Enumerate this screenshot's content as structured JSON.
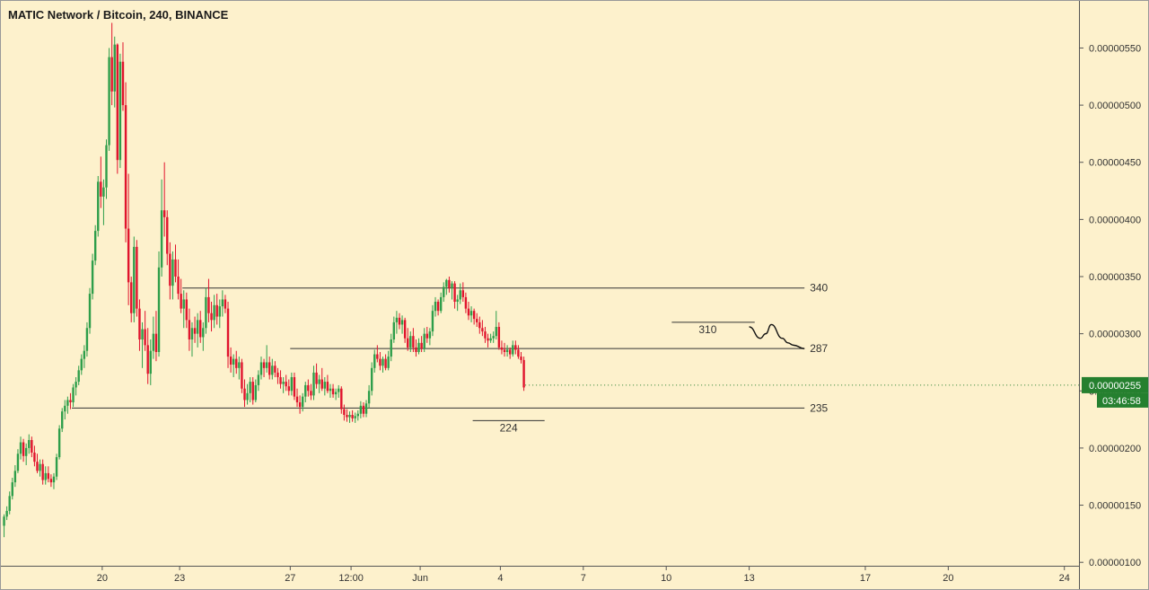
{
  "chart_data": {
    "type": "candlestick",
    "title": "MATIC Network / Bitcoin, 240, BINANCE",
    "y_ticks": [
      1e-06,
      1.5e-06,
      2e-06,
      2.5e-06,
      3e-06,
      3.5e-06,
      4e-06,
      4.5e-06,
      5e-06,
      5.5e-06
    ],
    "y_tick_labels": [
      "0.00000100",
      "0.00000150",
      "0.00000200",
      "0.00000250",
      "0.00000300",
      "0.00000350",
      "0.00000400",
      "0.00000450",
      "0.00000500",
      "0.00000550"
    ],
    "ylim": [
      9.7e-07,
      5.92e-06
    ],
    "x_labels": [
      "20",
      "23",
      "27",
      "12:00",
      "Jun",
      "4",
      "7",
      "10",
      "13",
      "17",
      "20",
      "24"
    ],
    "x_label_index": [
      36,
      64,
      104,
      126,
      151,
      180,
      210,
      240,
      270,
      312,
      342,
      384
    ],
    "n_slots": 384,
    "levels": [
      {
        "label": "340",
        "value": 3.4e-06,
        "from": 65,
        "to": 290
      },
      {
        "label": "287",
        "value": 2.87e-06,
        "from": 104,
        "to": 290
      },
      {
        "label": "235",
        "value": 2.35e-06,
        "from": 25,
        "to": 290
      },
      {
        "label": "224",
        "value": 2.24e-06,
        "from": 170,
        "to": 196
      },
      {
        "label": "310",
        "value": 3.1e-06,
        "from": 242,
        "to": 272
      }
    ],
    "current_price": {
      "value": 2.55e-06,
      "label": "0.00000255",
      "countdown": "03:46:58"
    },
    "colors": {
      "up": "#2e9e4a",
      "down": "#e0142d",
      "line": "#333333",
      "tag": "#25802f"
    },
    "candles": [
      [
        1.32,
        1.42,
        1.22,
        1.4
      ],
      [
        1.4,
        1.49,
        1.37,
        1.45
      ],
      [
        1.45,
        1.62,
        1.42,
        1.58
      ],
      [
        1.58,
        1.74,
        1.55,
        1.7
      ],
      [
        1.7,
        1.85,
        1.66,
        1.8
      ],
      [
        1.8,
        1.99,
        1.78,
        1.95
      ],
      [
        1.95,
        2.1,
        1.9,
        2.05
      ],
      [
        2.05,
        2.08,
        1.88,
        1.93
      ],
      [
        1.93,
        2.04,
        1.85,
        2.0
      ],
      [
        2.0,
        2.12,
        1.95,
        2.07
      ],
      [
        2.07,
        2.1,
        1.92,
        1.96
      ],
      [
        1.96,
        2.02,
        1.84,
        1.88
      ],
      [
        1.88,
        1.95,
        1.78,
        1.8
      ],
      [
        1.8,
        1.9,
        1.75,
        1.86
      ],
      [
        1.86,
        1.9,
        1.68,
        1.72
      ],
      [
        1.72,
        1.84,
        1.68,
        1.78
      ],
      [
        1.78,
        1.84,
        1.7,
        1.73
      ],
      [
        1.73,
        1.77,
        1.66,
        1.7
      ],
      [
        1.7,
        1.78,
        1.64,
        1.75
      ],
      [
        1.75,
        1.95,
        1.72,
        1.92
      ],
      [
        1.92,
        2.2,
        1.9,
        2.17
      ],
      [
        2.17,
        2.35,
        2.14,
        2.32
      ],
      [
        2.32,
        2.42,
        2.25,
        2.37
      ],
      [
        2.37,
        2.45,
        2.3,
        2.42
      ],
      [
        2.42,
        2.48,
        2.34,
        2.4
      ],
      [
        2.4,
        2.56,
        2.36,
        2.53
      ],
      [
        2.53,
        2.62,
        2.46,
        2.58
      ],
      [
        2.58,
        2.72,
        2.55,
        2.68
      ],
      [
        2.68,
        2.82,
        2.64,
        2.78
      ],
      [
        2.78,
        2.9,
        2.7,
        2.85
      ],
      [
        2.85,
        3.1,
        2.8,
        3.05
      ],
      [
        3.05,
        3.4,
        3.0,
        3.35
      ],
      [
        3.35,
        3.7,
        3.3,
        3.64
      ],
      [
        3.64,
        3.95,
        3.6,
        3.9
      ],
      [
        3.9,
        4.38,
        3.85,
        4.33
      ],
      [
        4.33,
        4.55,
        4.1,
        4.2
      ],
      [
        4.2,
        4.35,
        3.95,
        4.28
      ],
      [
        4.28,
        4.7,
        4.18,
        4.65
      ],
      [
        4.65,
        5.5,
        4.6,
        5.42
      ],
      [
        5.42,
        5.72,
        5.0,
        5.12
      ],
      [
        5.12,
        5.6,
        4.98,
        5.53
      ],
      [
        5.53,
        5.54,
        4.4,
        4.52
      ],
      [
        4.52,
        5.45,
        4.45,
        5.38
      ],
      [
        5.38,
        5.55,
        4.95,
        5.0
      ],
      [
        5.0,
        5.2,
        3.8,
        3.92
      ],
      [
        3.92,
        4.4,
        3.25,
        3.45
      ],
      [
        3.45,
        3.5,
        3.1,
        3.18
      ],
      [
        3.18,
        3.85,
        3.1,
        3.76
      ],
      [
        3.76,
        3.82,
        3.15,
        3.22
      ],
      [
        3.22,
        3.3,
        2.85,
        2.95
      ],
      [
        2.95,
        3.1,
        2.7,
        3.04
      ],
      [
        3.04,
        3.2,
        2.85,
        2.9
      ],
      [
        2.9,
        3.05,
        2.56,
        2.65
      ],
      [
        2.65,
        2.95,
        2.55,
        2.85
      ],
      [
        2.85,
        3.15,
        2.78,
        3.0
      ],
      [
        3.0,
        3.2,
        2.76,
        2.84
      ],
      [
        2.84,
        3.72,
        2.8,
        3.58
      ],
      [
        3.58,
        4.35,
        3.5,
        4.08
      ],
      [
        4.08,
        4.5,
        3.85,
        4.02
      ],
      [
        4.02,
        4.08,
        3.6,
        3.7
      ],
      [
        3.7,
        3.8,
        3.3,
        3.42
      ],
      [
        3.42,
        3.72,
        3.3,
        3.65
      ],
      [
        3.65,
        3.78,
        3.45,
        3.5
      ],
      [
        3.5,
        3.65,
        3.3,
        3.35
      ],
      [
        3.35,
        3.48,
        3.18,
        3.22
      ],
      [
        3.22,
        3.38,
        3.05,
        3.3
      ],
      [
        3.3,
        3.36,
        3.05,
        3.12
      ],
      [
        3.12,
        3.22,
        2.85,
        2.95
      ],
      [
        2.95,
        3.1,
        2.8,
        3.05
      ],
      [
        3.05,
        3.15,
        2.92,
        3.0
      ],
      [
        3.0,
        3.18,
        2.88,
        3.12
      ],
      [
        3.12,
        3.2,
        2.92,
        2.97
      ],
      [
        2.97,
        3.1,
        2.85,
        3.05
      ],
      [
        3.05,
        3.4,
        3.0,
        3.32
      ],
      [
        3.32,
        3.48,
        3.1,
        3.18
      ],
      [
        3.18,
        3.28,
        3.02,
        3.12
      ],
      [
        3.12,
        3.34,
        3.05,
        3.25
      ],
      [
        3.25,
        3.35,
        3.08,
        3.15
      ],
      [
        3.15,
        3.3,
        3.05,
        3.24
      ],
      [
        3.24,
        3.38,
        3.15,
        3.3
      ],
      [
        3.3,
        3.34,
        3.18,
        3.22
      ],
      [
        3.22,
        3.28,
        2.7,
        2.8
      ],
      [
        2.8,
        2.88,
        2.66,
        2.73
      ],
      [
        2.73,
        2.82,
        2.62,
        2.78
      ],
      [
        2.78,
        2.85,
        2.65,
        2.7
      ],
      [
        2.7,
        2.8,
        2.6,
        2.75
      ],
      [
        2.75,
        2.78,
        2.48,
        2.52
      ],
      [
        2.52,
        2.6,
        2.36,
        2.42
      ],
      [
        2.42,
        2.56,
        2.38,
        2.48
      ],
      [
        2.48,
        2.62,
        2.4,
        2.58
      ],
      [
        2.58,
        2.62,
        2.38,
        2.42
      ],
      [
        2.42,
        2.6,
        2.4,
        2.55
      ],
      [
        2.55,
        2.68,
        2.5,
        2.64
      ],
      [
        2.64,
        2.8,
        2.6,
        2.75
      ],
      [
        2.75,
        2.78,
        2.62,
        2.7
      ],
      [
        2.7,
        2.9,
        2.66,
        2.75
      ],
      [
        2.75,
        2.8,
        2.6,
        2.64
      ],
      [
        2.64,
        2.78,
        2.6,
        2.72
      ],
      [
        2.72,
        2.76,
        2.62,
        2.66
      ],
      [
        2.66,
        2.7,
        2.56,
        2.62
      ],
      [
        2.62,
        2.68,
        2.52,
        2.56
      ],
      [
        2.56,
        2.62,
        2.48,
        2.58
      ],
      [
        2.58,
        2.64,
        2.5,
        2.54
      ],
      [
        2.54,
        2.6,
        2.46,
        2.5
      ],
      [
        2.5,
        2.66,
        2.46,
        2.62
      ],
      [
        2.62,
        2.66,
        2.42,
        2.45
      ],
      [
        2.45,
        2.52,
        2.36,
        2.4
      ],
      [
        2.4,
        2.46,
        2.3,
        2.36
      ],
      [
        2.36,
        2.48,
        2.32,
        2.45
      ],
      [
        2.45,
        2.58,
        2.4,
        2.55
      ],
      [
        2.55,
        2.6,
        2.45,
        2.5
      ],
      [
        2.5,
        2.56,
        2.42,
        2.46
      ],
      [
        2.46,
        2.72,
        2.42,
        2.66
      ],
      [
        2.66,
        2.74,
        2.52,
        2.56
      ],
      [
        2.56,
        2.64,
        2.48,
        2.6
      ],
      [
        2.6,
        2.7,
        2.5,
        2.52
      ],
      [
        2.52,
        2.62,
        2.46,
        2.58
      ],
      [
        2.58,
        2.64,
        2.48,
        2.5
      ],
      [
        2.5,
        2.56,
        2.44,
        2.52
      ],
      [
        2.52,
        2.56,
        2.44,
        2.47
      ],
      [
        2.47,
        2.52,
        2.42,
        2.49
      ],
      [
        2.49,
        2.55,
        2.44,
        2.52
      ],
      [
        2.52,
        2.54,
        2.3,
        2.34
      ],
      [
        2.34,
        2.38,
        2.24,
        2.29
      ],
      [
        2.29,
        2.34,
        2.23,
        2.27
      ],
      [
        2.27,
        2.32,
        2.22,
        2.29
      ],
      [
        2.29,
        2.33,
        2.23,
        2.26
      ],
      [
        2.26,
        2.31,
        2.22,
        2.28
      ],
      [
        2.28,
        2.33,
        2.24,
        2.3
      ],
      [
        2.3,
        2.41,
        2.26,
        2.37
      ],
      [
        2.37,
        2.4,
        2.27,
        2.3
      ],
      [
        2.3,
        2.42,
        2.27,
        2.39
      ],
      [
        2.39,
        2.55,
        2.35,
        2.5
      ],
      [
        2.5,
        2.75,
        2.46,
        2.7
      ],
      [
        2.7,
        2.86,
        2.66,
        2.82
      ],
      [
        2.82,
        2.9,
        2.75,
        2.78
      ],
      [
        2.78,
        2.84,
        2.68,
        2.72
      ],
      [
        2.72,
        2.8,
        2.66,
        2.78
      ],
      [
        2.78,
        2.82,
        2.68,
        2.7
      ],
      [
        2.7,
        2.85,
        2.68,
        2.8
      ],
      [
        2.8,
        3.0,
        2.76,
        2.95
      ],
      [
        2.95,
        3.15,
        2.92,
        3.1
      ],
      [
        3.1,
        3.2,
        3.0,
        3.14
      ],
      [
        3.14,
        3.18,
        3.04,
        3.08
      ],
      [
        3.08,
        3.16,
        3.0,
        3.12
      ],
      [
        3.12,
        3.14,
        2.92,
        2.96
      ],
      [
        2.96,
        3.05,
        2.85,
        2.88
      ],
      [
        2.88,
        3.02,
        2.84,
        2.98
      ],
      [
        2.98,
        3.05,
        2.84,
        2.88
      ],
      [
        2.88,
        2.95,
        2.8,
        2.84
      ],
      [
        2.84,
        2.96,
        2.82,
        2.92
      ],
      [
        2.92,
        2.98,
        2.84,
        2.87
      ],
      [
        2.87,
        3.05,
        2.84,
        3.0
      ],
      [
        3.0,
        3.06,
        2.92,
        2.96
      ],
      [
        2.96,
        3.05,
        2.9,
        3.02
      ],
      [
        3.02,
        3.25,
        2.98,
        3.2
      ],
      [
        3.2,
        3.32,
        3.15,
        3.28
      ],
      [
        3.28,
        3.3,
        3.16,
        3.2
      ],
      [
        3.2,
        3.36,
        3.18,
        3.32
      ],
      [
        3.32,
        3.45,
        3.28,
        3.41
      ],
      [
        3.41,
        3.48,
        3.34,
        3.47
      ],
      [
        3.47,
        3.5,
        3.36,
        3.4
      ],
      [
        3.4,
        3.46,
        3.3,
        3.44
      ],
      [
        3.44,
        3.46,
        3.22,
        3.28
      ],
      [
        3.28,
        3.34,
        3.2,
        3.3
      ],
      [
        3.3,
        3.44,
        3.26,
        3.38
      ],
      [
        3.38,
        3.45,
        3.28,
        3.32
      ],
      [
        3.32,
        3.36,
        3.18,
        3.22
      ],
      [
        3.22,
        3.28,
        3.12,
        3.16
      ],
      [
        3.16,
        3.24,
        3.1,
        3.2
      ],
      [
        3.2,
        3.22,
        3.08,
        3.13
      ],
      [
        3.13,
        3.18,
        3.06,
        3.1
      ],
      [
        3.1,
        3.15,
        3.0,
        3.05
      ],
      [
        3.05,
        3.12,
        2.98,
        3.02
      ],
      [
        3.02,
        3.06,
        2.92,
        2.96
      ],
      [
        2.96,
        3.0,
        2.88,
        2.94
      ],
      [
        2.94,
        3.0,
        2.92,
        2.96
      ],
      [
        2.96,
        3.02,
        2.92,
        2.98
      ],
      [
        2.98,
        3.2,
        2.95,
        3.06
      ],
      [
        3.06,
        3.1,
        2.86,
        2.88
      ],
      [
        2.88,
        2.94,
        2.82,
        2.86
      ],
      [
        2.86,
        2.92,
        2.8,
        2.84
      ],
      [
        2.84,
        2.9,
        2.8,
        2.86
      ],
      [
        2.86,
        2.88,
        2.78,
        2.82
      ],
      [
        2.82,
        2.94,
        2.8,
        2.9
      ],
      [
        2.9,
        2.94,
        2.82,
        2.86
      ],
      [
        2.86,
        2.9,
        2.78,
        2.8
      ],
      [
        2.8,
        2.84,
        2.74,
        2.77
      ],
      [
        2.77,
        2.8,
        2.5,
        2.53
      ]
    ],
    "path_line": [
      [
        3.06e-06,
        270
      ],
      [
        2.96e-06,
        274
      ],
      [
        3e-06,
        276
      ],
      [
        3.08e-06,
        278
      ],
      [
        2.96e-06,
        282
      ],
      [
        2.92e-06,
        284
      ],
      [
        2.9e-06,
        286
      ],
      [
        2.87e-06,
        290
      ]
    ]
  }
}
